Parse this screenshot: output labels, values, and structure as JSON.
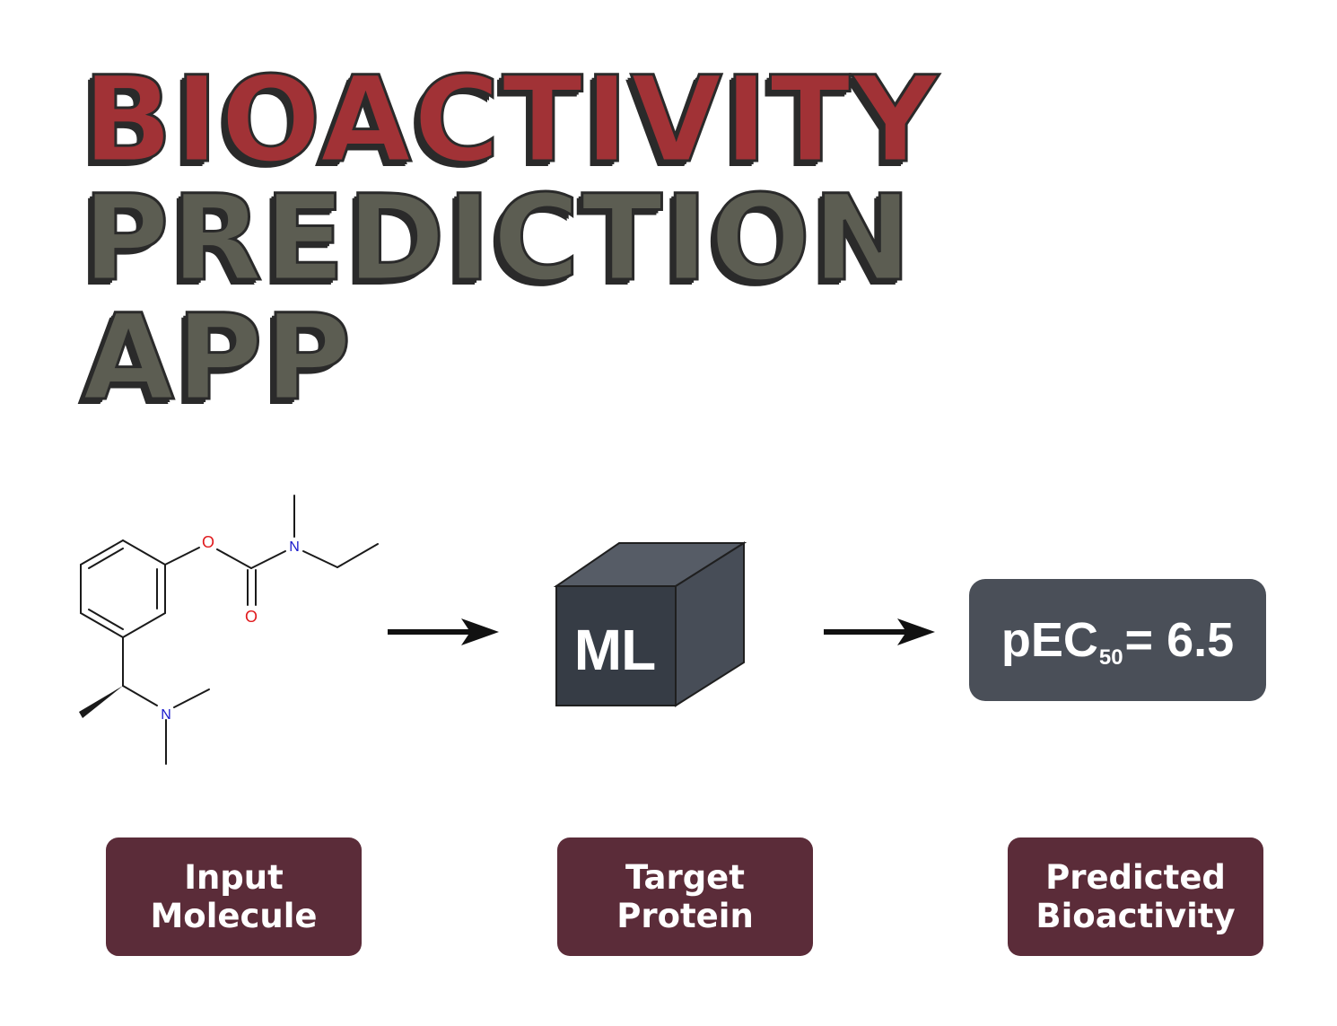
{
  "title": {
    "line1": "BIOACTIVITY",
    "line2": "PREDICTION",
    "line3": "APP"
  },
  "colors": {
    "title_red": "#a13236",
    "title_gray": "#5c5d52",
    "label_box": "#5b2c39",
    "result_box": "#4a4f58",
    "cube_front": "#363c45",
    "oxygen": "#e0191c",
    "nitrogen": "#1a1acc"
  },
  "molecule": {
    "atoms": {
      "o1": "O",
      "o2": "O",
      "n1": "N",
      "n2": "N"
    }
  },
  "model": {
    "label": "ML",
    "icon": "cube-icon"
  },
  "result": {
    "prefix": "pEC",
    "subscript": "50",
    "suffix": "= 6.5"
  },
  "labels": [
    {
      "line1": "Input",
      "line2": "Molecule"
    },
    {
      "line1": "Target",
      "line2": "Protein"
    },
    {
      "line1": "Predicted",
      "line2": "Bioactivity"
    }
  ]
}
